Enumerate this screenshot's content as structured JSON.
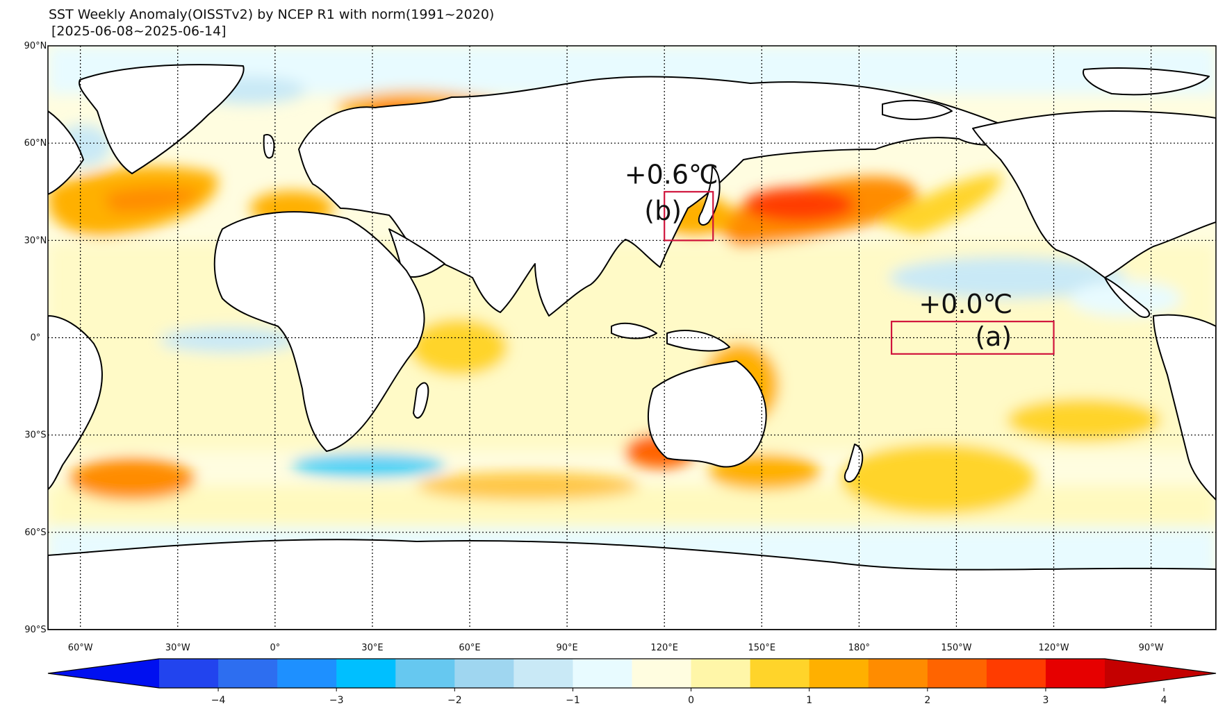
{
  "title": {
    "line1": "SST Weekly Anomaly(OISSTv2) by NCEP R1 with norm(1991~2020)",
    "line2": "[2025-06-08~2025-06-14]"
  },
  "lat_labels": [
    "90°N",
    "60°N",
    "30°N",
    "0°",
    "30°S",
    "60°S",
    "90°S"
  ],
  "lon_labels": [
    "60°W",
    "30°W",
    "0°",
    "30°E",
    "60°E",
    "90°E",
    "120°E",
    "150°E",
    "180°",
    "150°W",
    "120°W",
    "90°W"
  ],
  "colorbar": {
    "ticks": [
      "−4",
      "−3",
      "−2",
      "−1",
      "0",
      "1",
      "2",
      "3",
      "4"
    ],
    "colors": [
      "#2244ee",
      "#2d6ef0",
      "#1e90ff",
      "#00bfff",
      "#66c8f0",
      "#9fd6f0",
      "#c9e9f6",
      "#e8fbff",
      "#fffde0",
      "#fff6a8",
      "#ffd42a",
      "#ffb000",
      "#ff8c00",
      "#ff6400",
      "#ff3c00",
      "#e60000"
    ],
    "min_arrow_color": "#0010f0",
    "max_arrow_color": "#c40000"
  },
  "boxes": [
    {
      "label": "(a)",
      "value": "+0.0℃",
      "lon": [
        -170,
        -120
      ],
      "lat": [
        -5,
        5
      ],
      "color": "#d0143c"
    },
    {
      "label": "(b)",
      "value": "+0.6℃",
      "lon": [
        120,
        135
      ],
      "lat": [
        30,
        45
      ],
      "color": "#d0143c"
    }
  ]
}
